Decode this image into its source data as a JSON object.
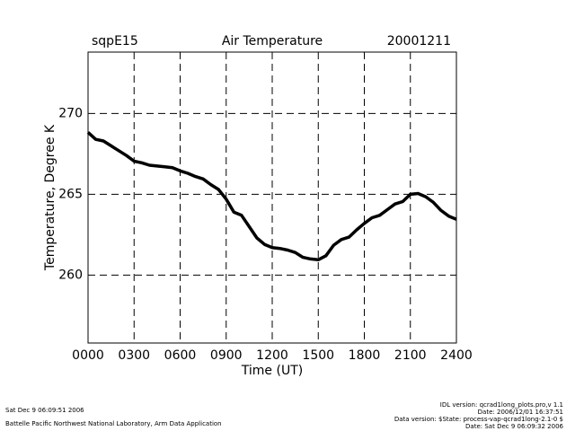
{
  "chart_data": {
    "type": "line",
    "title": "Air Temperature",
    "site": "sqpE15",
    "date": "20001211",
    "x_label": "Time (UT)",
    "y_label": "Temperature, Degree K",
    "x": [
      0,
      0.5,
      1,
      1.5,
      2,
      2.5,
      3,
      3.5,
      4,
      4.5,
      5,
      5.5,
      6,
      6.5,
      7,
      7.5,
      8,
      8.5,
      9,
      9.5,
      10,
      10.5,
      11,
      11.5,
      12,
      12.5,
      13,
      13.5,
      14,
      14.5,
      15,
      15.5,
      16,
      16.5,
      17,
      17.5,
      18,
      18.5,
      19,
      19.5,
      20,
      20.5,
      21,
      21.5,
      22,
      22.5,
      23,
      23.5,
      24
    ],
    "series": [
      {
        "name": "Air Temperature",
        "color": "#000000",
        "values": [
          268.83,
          268.4,
          268.3,
          268.0,
          267.7,
          267.4,
          267.05,
          266.95,
          266.8,
          266.75,
          266.7,
          266.65,
          266.45,
          266.3,
          266.1,
          265.95,
          265.6,
          265.3,
          264.7,
          263.9,
          263.7,
          263.0,
          262.3,
          261.9,
          261.7,
          261.65,
          261.55,
          261.4,
          261.1,
          261.0,
          260.95,
          261.2,
          261.85,
          262.2,
          262.35,
          262.8,
          263.2,
          263.55,
          263.7,
          264.05,
          264.4,
          264.55,
          265.0,
          265.05,
          264.85,
          264.5,
          264.0,
          263.65,
          263.45
        ]
      }
    ],
    "xlim": [
      0,
      24
    ],
    "xticks": [
      {
        "value": 0,
        "label": "0000"
      },
      {
        "value": 3,
        "label": "0300"
      },
      {
        "value": 6,
        "label": "0600"
      },
      {
        "value": 9,
        "label": "0900"
      },
      {
        "value": 12,
        "label": "1200"
      },
      {
        "value": 15,
        "label": "1500"
      },
      {
        "value": 18,
        "label": "1800"
      },
      {
        "value": 21,
        "label": "2100"
      },
      {
        "value": 24,
        "label": "2400"
      }
    ],
    "ylim": [
      255.8,
      273.8
    ],
    "yticks": [
      260,
      265,
      270
    ],
    "grid": true
  },
  "footer": {
    "left": [
      "Sat Dec  9 06:09:51 2006",
      "Battelle Pacific Northwest National Laboratory, Arm Data Application"
    ],
    "right": [
      "IDL version: qcrad1long_plots.pro,v 1.1",
      "Date: 2006/12/01 16:37:51",
      "Data version: $State: process-vap-qcrad1long-2.1-0 $",
      "Date: Sat Dec  9 06:09:32 2006"
    ]
  }
}
